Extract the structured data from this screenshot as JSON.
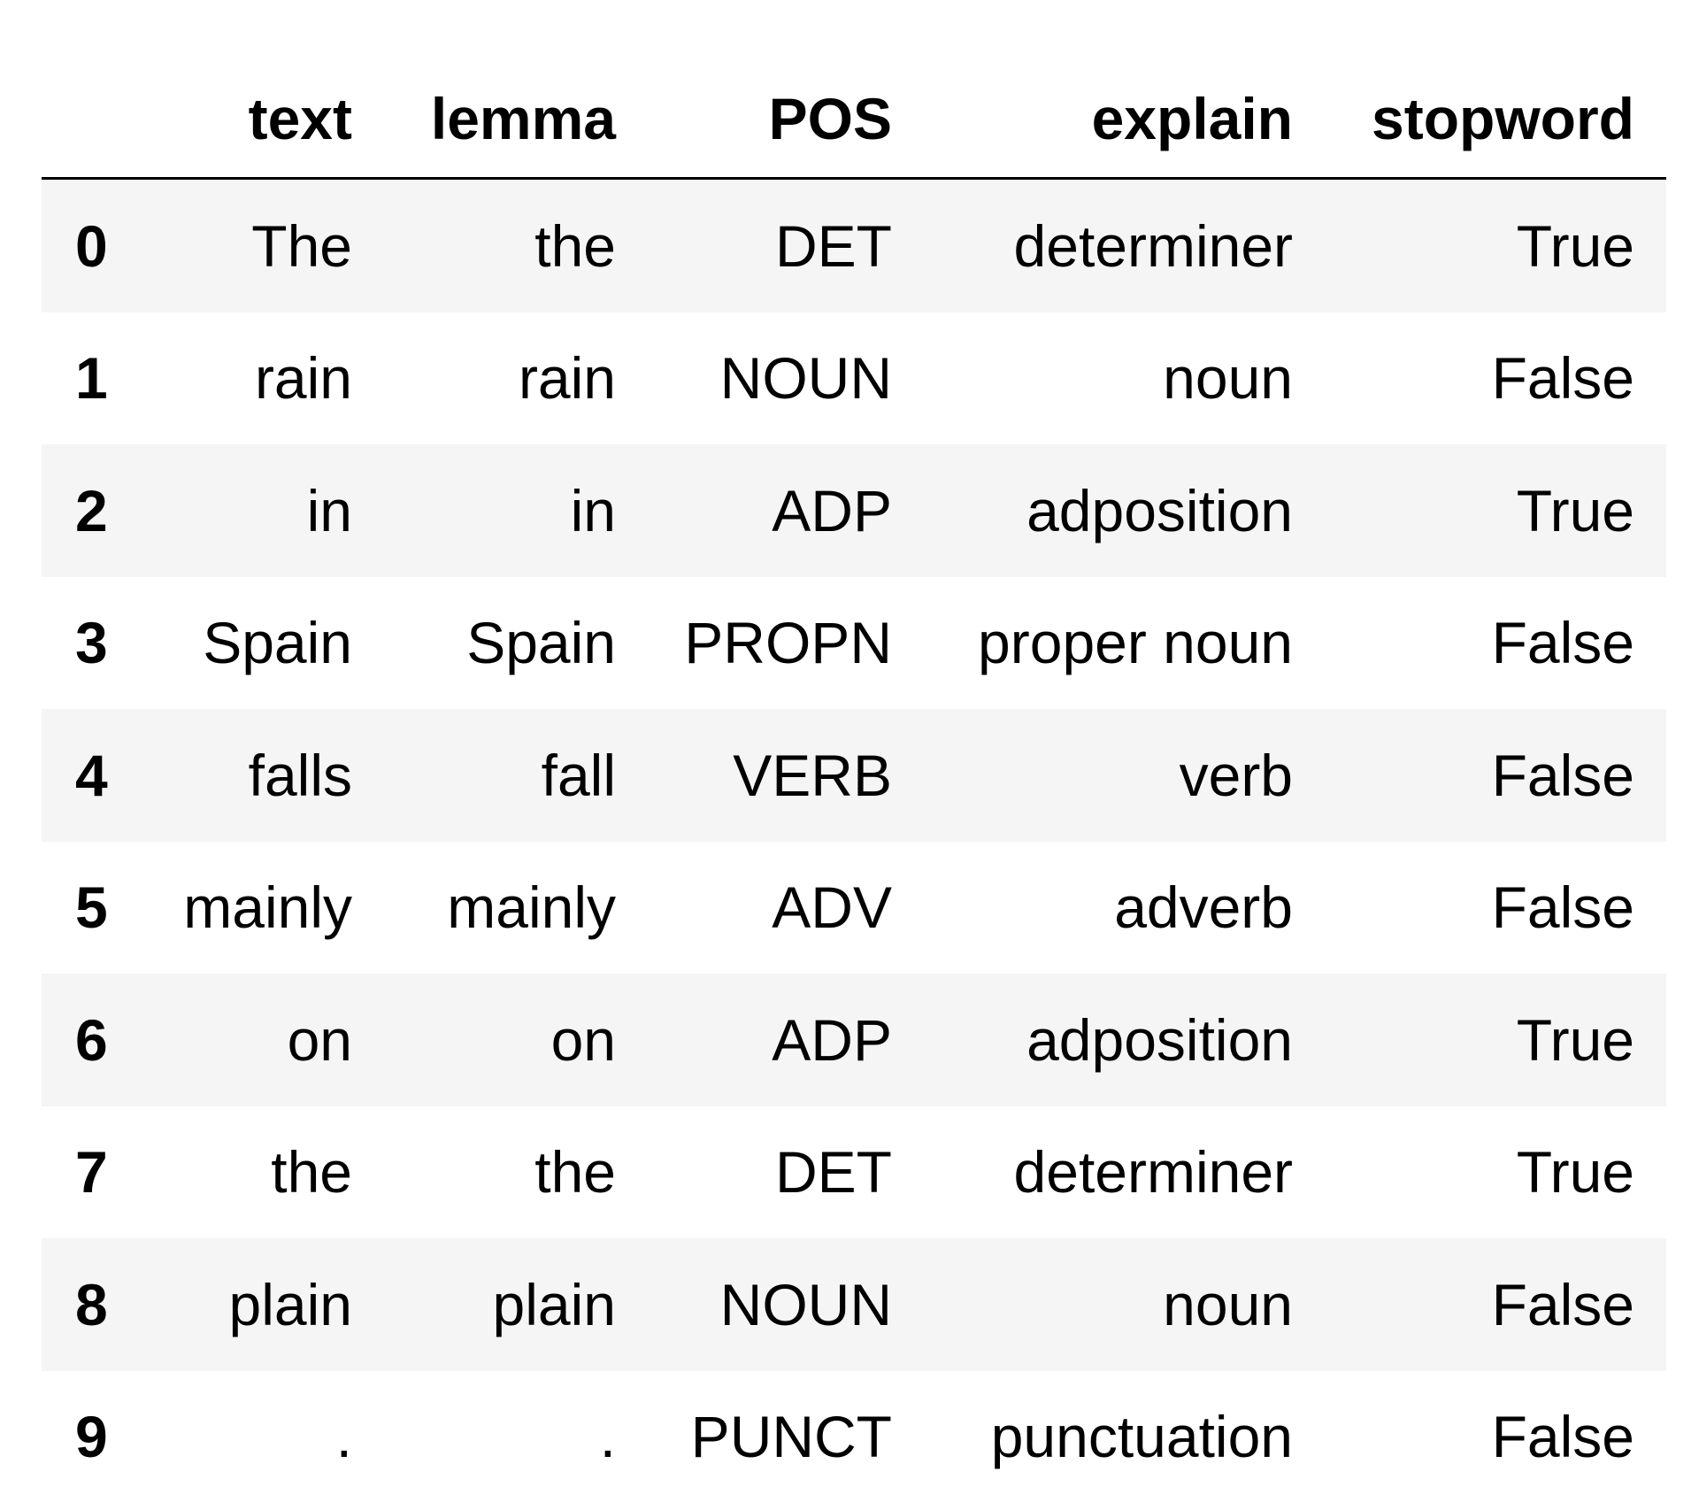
{
  "table": {
    "columns": [
      "text",
      "lemma",
      "POS",
      "explain",
      "stopword"
    ],
    "rows": [
      {
        "index": "0",
        "text": "The",
        "lemma": "the",
        "POS": "DET",
        "explain": "determiner",
        "stopword": "True"
      },
      {
        "index": "1",
        "text": "rain",
        "lemma": "rain",
        "POS": "NOUN",
        "explain": "noun",
        "stopword": "False"
      },
      {
        "index": "2",
        "text": "in",
        "lemma": "in",
        "POS": "ADP",
        "explain": "adposition",
        "stopword": "True"
      },
      {
        "index": "3",
        "text": "Spain",
        "lemma": "Spain",
        "POS": "PROPN",
        "explain": "proper noun",
        "stopword": "False"
      },
      {
        "index": "4",
        "text": "falls",
        "lemma": "fall",
        "POS": "VERB",
        "explain": "verb",
        "stopword": "False"
      },
      {
        "index": "5",
        "text": "mainly",
        "lemma": "mainly",
        "POS": "ADV",
        "explain": "adverb",
        "stopword": "False"
      },
      {
        "index": "6",
        "text": "on",
        "lemma": "on",
        "POS": "ADP",
        "explain": "adposition",
        "stopword": "True"
      },
      {
        "index": "7",
        "text": "the",
        "lemma": "the",
        "POS": "DET",
        "explain": "determiner",
        "stopword": "True"
      },
      {
        "index": "8",
        "text": "plain",
        "lemma": "plain",
        "POS": "NOUN",
        "explain": "noun",
        "stopword": "False"
      },
      {
        "index": "9",
        "text": ".",
        "lemma": ".",
        "POS": "PUNCT",
        "explain": "punctuation",
        "stopword": "False"
      }
    ]
  }
}
